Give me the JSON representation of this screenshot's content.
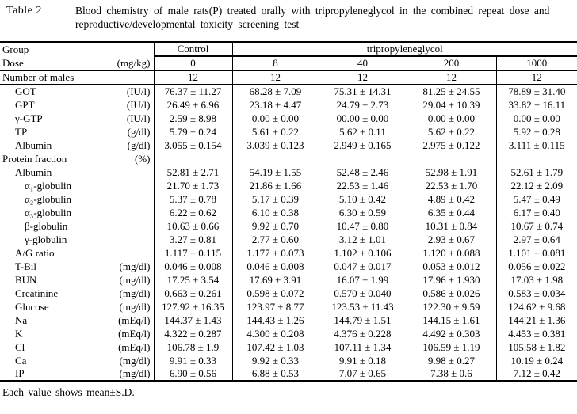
{
  "title": {
    "label": "Table 2",
    "caption_line1": "Blood chemistry of male rats(P) treated orally with tripropyleneglycol in the combined repeat dose and",
    "caption_line2": "reproductive/developmental toxicity screening test"
  },
  "header": {
    "group_label": "Group",
    "control_label": "Control",
    "treatment_label": "tripropyleneglycol",
    "dose_label": "Dose",
    "dose_unit": "(mg/kg)",
    "doses": [
      "0",
      "8",
      "40",
      "200",
      "1000"
    ],
    "n_label": "Number of males",
    "n_values": [
      "12",
      "12",
      "12",
      "12",
      "12"
    ]
  },
  "rows": [
    {
      "label": "GOT",
      "unit": "(IU/l)",
      "indent": 1,
      "values": [
        "76.37 ± 11.27",
        "68.28 ± 7.09",
        "75.31 ± 14.31",
        "81.25 ± 24.55",
        "78.89 ± 31.40"
      ]
    },
    {
      "label": "GPT",
      "unit": "(IU/l)",
      "indent": 1,
      "values": [
        "26.49 ± 6.96",
        "23.18 ± 4.47",
        "24.79 ± 2.73",
        "29.04 ± 10.39",
        "33.82 ± 16.11"
      ]
    },
    {
      "label": "γ-GTP",
      "unit": "(IU/l)",
      "indent": 1,
      "values": [
        "2.59 ± 8.98",
        "0.00 ± 0.00",
        "00.00 ± 0.00",
        "0.00 ± 0.00",
        "0.00 ± 0.00"
      ]
    },
    {
      "label": "TP",
      "unit": "(g/dl)",
      "indent": 1,
      "values": [
        "5.79 ± 0.24",
        "5.61 ± 0.22",
        "5.62 ± 0.11",
        "5.62 ± 0.22",
        "5.92 ± 0.28"
      ]
    },
    {
      "label": "Albumin",
      "unit": "(g/dl)",
      "indent": 1,
      "values": [
        "3.055 ± 0.154",
        "3.039 ± 0.123",
        "2.949 ± 0.165",
        "2.975 ± 0.122",
        "3.111 ± 0.115"
      ]
    },
    {
      "label": "Protein fraction",
      "unit": "(%)",
      "indent": 0,
      "values": [
        "",
        "",
        "",
        "",
        ""
      ]
    },
    {
      "label": "Albumin",
      "unit": "",
      "indent": 1,
      "values": [
        "52.81 ± 2.71",
        "54.19 ± 1.55",
        "52.48 ± 2.46",
        "52.98 ± 1.91",
        "52.61 ± 1.79"
      ]
    },
    {
      "label": "α₁-globulin",
      "unit": "",
      "indent": 2,
      "values": [
        "21.70 ± 1.73",
        "21.86 ± 1.66",
        "22.53 ± 1.46",
        "22.53 ± 1.70",
        "22.12 ± 2.09"
      ]
    },
    {
      "label": "α₂-globulin",
      "unit": "",
      "indent": 2,
      "values": [
        "5.37 ± 0.78",
        "5.17 ± 0.39",
        "5.10 ± 0.42",
        "4.89 ± 0.42",
        "5.47 ± 0.49"
      ]
    },
    {
      "label": "α₃-globulin",
      "unit": "",
      "indent": 2,
      "values": [
        "6.22 ± 0.62",
        "6.10 ± 0.38",
        "6.30 ± 0.59",
        "6.35 ± 0.44",
        "6.17 ± 0.40"
      ]
    },
    {
      "label": "β-globulin",
      "unit": "",
      "indent": 2,
      "values": [
        "10.63 ± 0.66",
        "9.92 ± 0.70",
        "10.47 ± 0.80",
        "10.31 ± 0.84",
        "10.67 ± 0.74"
      ]
    },
    {
      "label": "γ-globulin",
      "unit": "",
      "indent": 2,
      "values": [
        "3.27 ± 0.81",
        "2.77 ± 0.60",
        "3.12 ± 1.01",
        "2.93 ± 0.67",
        "2.97 ± 0.64"
      ]
    },
    {
      "label": "A/G ratio",
      "unit": "",
      "indent": 1,
      "values": [
        "1.117 ± 0.115",
        "1.177 ± 0.073",
        "1.102 ± 0.106",
        "1.120 ± 0.088",
        "1.101 ± 0.081"
      ]
    },
    {
      "label": "T-Bil",
      "unit": "(mg/dl)",
      "indent": 1,
      "values": [
        "0.046 ± 0.008",
        "0.046 ± 0.008",
        "0.047 ± 0.017",
        "0.053 ± 0.012",
        "0.056 ± 0.022"
      ]
    },
    {
      "label": "BUN",
      "unit": "(mg/dl)",
      "indent": 1,
      "values": [
        "17.25 ± 3.54",
        "17.69 ± 3.91",
        "16.07 ± 1.99",
        "17.96 ± 1.930",
        "17.03 ± 1.98"
      ]
    },
    {
      "label": "Creatinine",
      "unit": "(mg/dl)",
      "indent": 1,
      "values": [
        "0.663 ± 0.261",
        "0.598 ± 0.072",
        "0.570 ± 0.040",
        "0.586 ± 0.026",
        "0.583 ± 0.034"
      ]
    },
    {
      "label": "Glucose",
      "unit": "(mg/dl)",
      "indent": 1,
      "values": [
        "127.92 ± 16.35",
        "123.97 ± 8.77",
        "123.53 ± 11.43",
        "122.30 ± 9.59",
        "124.62 ± 9.68"
      ]
    },
    {
      "label": "Na",
      "unit": "(mEq/l)",
      "indent": 1,
      "values": [
        "144.37 ± 1.43",
        "144.43 ± 1.26",
        "144.79 ± 1.51",
        "144.15 ± 1.61",
        "144.21 ± 1.36"
      ]
    },
    {
      "label": "K",
      "unit": "(mEq/l)",
      "indent": 1,
      "values": [
        "4.322 ± 0.287",
        "4.300 ± 0.208",
        "4.376 ± 0.228",
        "4.492 ± 0.303",
        "4.453 ± 0.381"
      ]
    },
    {
      "label": "Cl",
      "unit": "(mEq/l)",
      "indent": 1,
      "values": [
        "106.78 ± 1.9",
        "107.42 ± 1.03",
        "107.11 ± 1.34",
        "106.59 ± 1.19",
        "105.58 ± 1.82"
      ]
    },
    {
      "label": "Ca",
      "unit": "(mg/dl)",
      "indent": 1,
      "values": [
        "9.91 ± 0.33",
        "9.92 ± 0.33",
        "9.91 ± 0.18",
        "9.98 ± 0.27",
        "10.19 ± 0.24"
      ]
    },
    {
      "label": "IP",
      "unit": "(mg/dl)",
      "indent": 1,
      "values": [
        "6.90 ± 0.56",
        "6.88 ± 0.53",
        "7.07 ± 0.65",
        "7.38 ± 0.6",
        "7.12 ± 0.42"
      ]
    }
  ],
  "footer": "Each value shows mean±S.D."
}
